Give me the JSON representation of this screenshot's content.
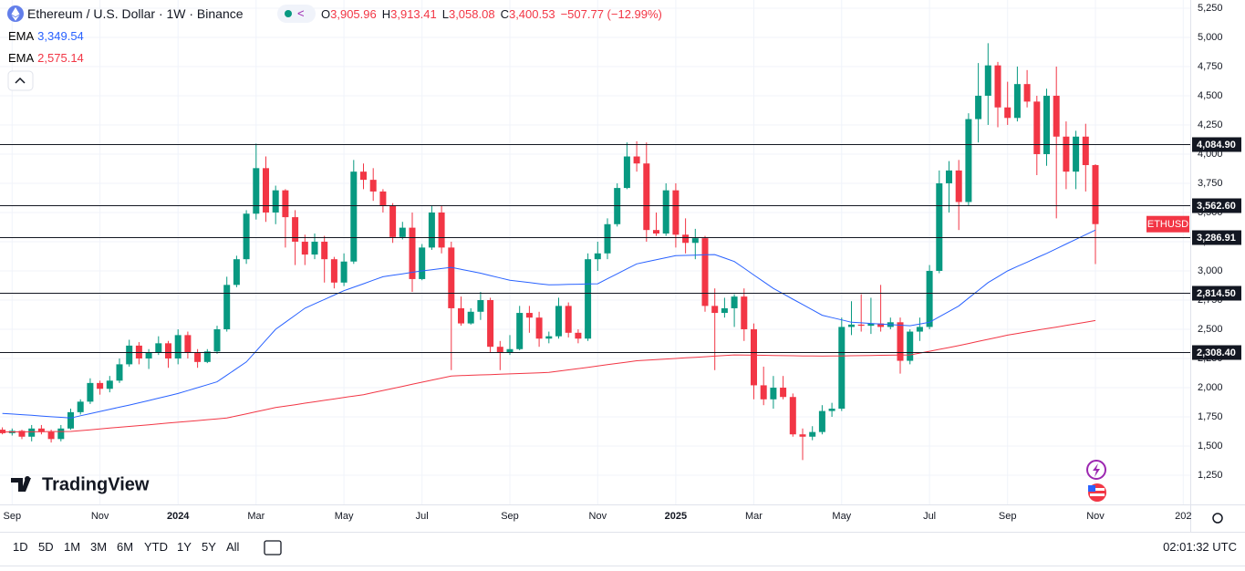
{
  "chart_data": {
    "type": "candlestick",
    "header": {
      "title": "Ethereum / U.S. Dollar · 1W · Binance",
      "ohlc": [
        {
          "key": "O",
          "value": "3,905.96"
        },
        {
          "key": "H",
          "value": "3,913.41"
        },
        {
          "key": "L",
          "value": "3,058.08"
        },
        {
          "key": "C",
          "value": "3,400.53"
        }
      ],
      "change": "−507.77 (−12.99%)"
    },
    "symbol_label": "ETHUSD",
    "up_color": "#089981",
    "down_color": "#f23645",
    "categories": [
      null,
      "Sep",
      null,
      null,
      null,
      null,
      null,
      null,
      null,
      null,
      "Nov",
      null,
      null,
      null,
      null,
      null,
      null,
      null,
      "2024",
      null,
      null,
      null,
      null,
      null,
      null,
      null,
      "Mar",
      null,
      null,
      null,
      null,
      null,
      null,
      null,
      null,
      "May",
      null,
      null,
      null,
      null,
      null,
      null,
      null,
      "Jul",
      null,
      null,
      null,
      null,
      null,
      null,
      null,
      null,
      "Sep",
      null,
      null,
      null,
      null,
      null,
      null,
      null,
      null,
      "Nov",
      null,
      null,
      null,
      null,
      null,
      null,
      null,
      "2025",
      null,
      null,
      null,
      null,
      null,
      null,
      null,
      "Mar",
      null,
      null,
      null,
      null,
      null,
      null,
      null,
      null,
      "May",
      null,
      null,
      null,
      null,
      null,
      null,
      null,
      null,
      "Jul",
      null,
      null,
      null,
      null,
      null,
      null,
      null,
      "Sep",
      null,
      null,
      null,
      null,
      null,
      null,
      null,
      null,
      "Nov",
      null,
      null,
      null,
      null,
      null,
      null,
      null,
      null,
      "202"
    ],
    "open": [
      1640,
      1610,
      1630,
      1580,
      1650,
      1620,
      1560,
      1650,
      1790,
      1880,
      2040,
      1990,
      2060,
      2200,
      2360,
      2250,
      2300,
      2380,
      2250,
      2450,
      2300,
      2220,
      2310,
      2500,
      2880,
      3100,
      3490,
      3880,
      3500,
      3690,
      3460,
      3250,
      3140,
      3250,
      3100,
      2900,
      3080,
      3850,
      3780,
      3680,
      3560,
      3290,
      3370,
      2930,
      3200,
      3500,
      3200,
      2680,
      2550,
      2650,
      2750,
      2350,
      2300,
      2330,
      2640,
      2600,
      2420,
      2440,
      2700,
      2470,
      2420,
      3100,
      3150,
      3400,
      3710,
      3980,
      3920,
      3350,
      3320,
      3690,
      3310,
      3240,
      3280,
      2700,
      2640,
      2680,
      2780,
      2500,
      2020,
      1900,
      2000,
      1920,
      1600,
      1580,
      1620,
      1800,
      1820,
      2520,
      2540,
      2530,
      2550,
      2520,
      2560,
      2230,
      2480,
      2520,
      3000,
      3750,
      3860,
      3590,
      4300,
      4500,
      4760,
      4400,
      4310,
      4600,
      4450,
      4000,
      4500,
      4150,
      3850,
      4150,
      3905.96,
      null,
      null,
      null,
      null,
      null,
      null,
      null,
      null,
      null
    ],
    "high": [
      1660,
      1650,
      1640,
      1680,
      1680,
      1640,
      1680,
      1820,
      1900,
      2080,
      2060,
      2100,
      2250,
      2410,
      2390,
      2330,
      2440,
      2400,
      2500,
      2480,
      2330,
      2330,
      2530,
      2950,
      3130,
      3520,
      4090,
      3980,
      3730,
      3700,
      3520,
      3310,
      3320,
      3300,
      3120,
      3150,
      3950,
      3920,
      3880,
      3700,
      3580,
      3420,
      3500,
      3230,
      3560,
      3560,
      3250,
      2780,
      2680,
      2820,
      2770,
      2400,
      2450,
      2700,
      2700,
      2650,
      2480,
      2770,
      2730,
      2500,
      3150,
      3250,
      3450,
      3750,
      4100,
      4110,
      4100,
      3500,
      3750,
      3750,
      3450,
      3360,
      3300,
      2850,
      2770,
      2800,
      2850,
      2550,
      2180,
      2100,
      2100,
      1950,
      1650,
      1670,
      1850,
      1870,
      2600,
      2740,
      2800,
      2770,
      2880,
      2600,
      2600,
      2500,
      2600,
      3050,
      3860,
      3940,
      3950,
      4350,
      4780,
      4950,
      4790,
      4620,
      4750,
      4720,
      4500,
      4560,
      4750,
      4280,
      4200,
      4260,
      3913.41,
      null,
      null,
      null,
      null,
      null,
      null,
      null,
      null,
      null
    ],
    "low": [
      1600,
      1590,
      1560,
      1540,
      1600,
      1530,
      1540,
      1640,
      1770,
      1860,
      1940,
      1960,
      2040,
      2180,
      2200,
      2160,
      2280,
      2170,
      2200,
      2250,
      2170,
      2210,
      2290,
      2480,
      2860,
      3060,
      3440,
      3420,
      3400,
      3200,
      3050,
      3050,
      3100,
      2900,
      2850,
      2870,
      3060,
      3700,
      3600,
      3500,
      3240,
      3270,
      2820,
      2920,
      3180,
      3150,
      2150,
      2530,
      2540,
      2580,
      2300,
      2150,
      2280,
      2320,
      2470,
      2350,
      2380,
      2420,
      2430,
      2380,
      2400,
      3000,
      3100,
      3380,
      3700,
      3850,
      3250,
      3300,
      3300,
      3200,
      3150,
      3100,
      2650,
      2150,
      2600,
      2520,
      2400,
      1900,
      1850,
      1820,
      1900,
      1580,
      1380,
      1550,
      1600,
      1750,
      1800,
      2450,
      2480,
      2460,
      2480,
      2500,
      2120,
      2200,
      2400,
      2500,
      2980,
      3500,
      3350,
      3560,
      4100,
      4250,
      4230,
      4250,
      4280,
      4400,
      3820,
      3900,
      3450,
      3700,
      3700,
      3680,
      3058.08,
      null,
      null,
      null,
      null,
      null,
      null,
      null,
      null,
      null
    ],
    "close": [
      1610,
      1630,
      1580,
      1650,
      1620,
      1560,
      1650,
      1790,
      1880,
      2040,
      1990,
      2060,
      2200,
      2360,
      2250,
      2300,
      2380,
      2250,
      2450,
      2300,
      2220,
      2310,
      2500,
      2880,
      3100,
      3490,
      3880,
      3500,
      3690,
      3460,
      3250,
      3140,
      3250,
      3100,
      2900,
      3080,
      3850,
      3780,
      3680,
      3560,
      3290,
      3370,
      2930,
      3200,
      3500,
      3200,
      2680,
      2550,
      2650,
      2750,
      2350,
      2300,
      2330,
      2640,
      2600,
      2420,
      2440,
      2700,
      2470,
      2420,
      3100,
      3150,
      3400,
      3710,
      3980,
      3920,
      3350,
      3320,
      3690,
      3310,
      3240,
      3280,
      2700,
      2640,
      2680,
      2780,
      2500,
      2020,
      1900,
      2000,
      1920,
      1600,
      1580,
      1620,
      1800,
      1820,
      2520,
      2540,
      2530,
      2550,
      2520,
      2560,
      2230,
      2480,
      2520,
      3000,
      3750,
      3860,
      3590,
      4300,
      4500,
      4760,
      4400,
      4310,
      4600,
      4450,
      4000,
      4500,
      4150,
      3850,
      4150,
      3906,
      3400.53,
      null,
      null,
      null,
      null,
      null,
      null,
      null,
      null,
      null
    ],
    "lines": [
      {
        "name": "EMA",
        "legend_value": "3,349.54",
        "color": "#2962ff",
        "values": [
          1780,
          1774,
          1769,
          1763,
          1757,
          1751,
          1746,
          1740,
          1759,
          1777,
          1796,
          1814,
          1833,
          1851,
          1870,
          1890,
          1910,
          1930,
          1950,
          1975,
          2000,
          2025,
          2050,
          2107,
          2163,
          2220,
          2313,
          2407,
          2500,
          2560,
          2620,
          2680,
          2718,
          2755,
          2793,
          2830,
          2860,
          2890,
          2920,
          2950,
          2963,
          2975,
          2988,
          3000,
          3010,
          3020,
          3030,
          3013,
          2997,
          2980,
          2960,
          2940,
          2920,
          2910,
          2900,
          2890,
          2880,
          2882,
          2884,
          2886,
          2888,
          2890,
          2933,
          2975,
          3018,
          3060,
          3078,
          3095,
          3113,
          3130,
          3133,
          3135,
          3138,
          3140,
          3110,
          3080,
          3023,
          2965,
          2908,
          2850,
          2804,
          2758,
          2712,
          2666,
          2620,
          2600,
          2580,
          2560,
          2555,
          2550,
          2545,
          2540,
          2535,
          2530,
          2545,
          2560,
          2607,
          2653,
          2700,
          2767,
          2833,
          2900,
          2950,
          3000,
          3038,
          3075,
          3113,
          3150,
          3190,
          3230,
          3270,
          3310,
          3349.54,
          null,
          null,
          null,
          null,
          null,
          null,
          null,
          null,
          null
        ]
      },
      {
        "name": "EMA",
        "legend_value": "2,575.14",
        "color": "#f23645",
        "values": [
          1620,
          1621,
          1621,
          1622,
          1623,
          1624,
          1624,
          1625,
          1632,
          1639,
          1647,
          1654,
          1661,
          1668,
          1675,
          1682,
          1690,
          1697,
          1704,
          1711,
          1718,
          1726,
          1733,
          1740,
          1758,
          1776,
          1794,
          1812,
          1830,
          1842,
          1854,
          1867,
          1879,
          1891,
          1903,
          1916,
          1928,
          1940,
          1958,
          1976,
          1993,
          2011,
          2029,
          2047,
          2064,
          2082,
          2100,
          2103,
          2106,
          2109,
          2112,
          2115,
          2118,
          2121,
          2124,
          2127,
          2130,
          2141,
          2152,
          2163,
          2174,
          2186,
          2197,
          2208,
          2219,
          2230,
          2235,
          2240,
          2245,
          2250,
          2255,
          2260,
          2265,
          2270,
          2275,
          2280,
          2279,
          2278,
          2277,
          2276,
          2274,
          2273,
          2272,
          2271,
          2270,
          2271,
          2272,
          2273,
          2274,
          2276,
          2277,
          2278,
          2279,
          2280,
          2296,
          2312,
          2328,
          2344,
          2360,
          2378,
          2396,
          2414,
          2432,
          2450,
          2464,
          2478,
          2492,
          2506,
          2519,
          2533,
          2547,
          2561,
          2575.14,
          null,
          null,
          null,
          null,
          null,
          null,
          null,
          null,
          null
        ]
      }
    ],
    "levels": [
      {
        "value": 4084.9,
        "label": "4,084.90"
      },
      {
        "value": 3562.6,
        "label": "3,562.60"
      },
      {
        "value": 3286.91,
        "label": "3,286.91"
      },
      {
        "value": 2814.5,
        "label": "2,814.50"
      },
      {
        "value": 2308.4,
        "label": "2,308.40"
      }
    ],
    "ylim": [
      1000,
      5320
    ],
    "yticks": [
      {
        "value": 1250,
        "label": "1,250"
      },
      {
        "value": 1500,
        "label": "1,500"
      },
      {
        "value": 1750,
        "label": "1,750"
      },
      {
        "value": 2000,
        "label": "2,000"
      },
      {
        "value": 2250,
        "label": "2,250"
      },
      {
        "value": 2500,
        "label": "2,500"
      },
      {
        "value": 2750,
        "label": "2,750"
      },
      {
        "value": 3000,
        "label": "3,000"
      },
      {
        "value": 3250,
        "label": "3,250"
      },
      {
        "value": 3500,
        "label": "3,500"
      },
      {
        "value": 3750,
        "label": "3,750"
      },
      {
        "value": 4000,
        "label": "4,000"
      },
      {
        "value": 4250,
        "label": "4,250"
      },
      {
        "value": 4500,
        "label": "4,500"
      },
      {
        "value": 4750,
        "label": "4,750"
      },
      {
        "value": 5000,
        "label": "5,000"
      },
      {
        "value": 5250,
        "label": "5,250"
      }
    ],
    "grid": true,
    "logo": "TradingView",
    "ranges": [
      "1D",
      "5D",
      "1M",
      "3M",
      "6M",
      "YTD",
      "1Y",
      "5Y",
      "All"
    ],
    "clock": "02:01:32 UTC"
  }
}
